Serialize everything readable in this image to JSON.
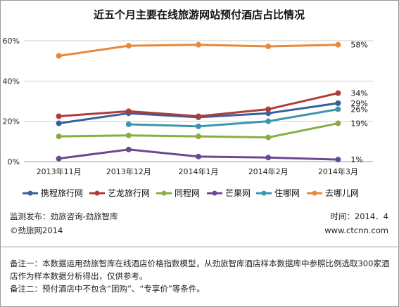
{
  "chart_data": {
    "type": "line",
    "title": "近五个月主要在线旅游网站预付酒店占比情况",
    "categories": [
      "2013年11月",
      "2013年12月",
      "2014年1月",
      "2014年2月",
      "2014年3月"
    ],
    "ylim": [
      0,
      60
    ],
    "yticks": [
      "0%",
      "20%",
      "40%",
      "60%"
    ],
    "grid": true,
    "legend_position": "bottom",
    "series": [
      {
        "name": "携程旅行网",
        "color": "#3a5f9c",
        "values": [
          19,
          24,
          22,
          24,
          29
        ],
        "end_label": "29%"
      },
      {
        "name": "艺龙旅行网",
        "color": "#b03b3b",
        "values": [
          22.5,
          25,
          22.5,
          26,
          34
        ],
        "end_label": "34%"
      },
      {
        "name": "同程网",
        "color": "#8aac45",
        "values": [
          12.5,
          13,
          12.5,
          12,
          19
        ],
        "end_label": "19%"
      },
      {
        "name": "芒果网",
        "color": "#6a4a8e",
        "values": [
          1.5,
          6,
          2.5,
          2,
          1
        ],
        "end_label": "1%"
      },
      {
        "name": "住哪网",
        "color": "#3b97ae",
        "values": [
          null,
          18.5,
          17.5,
          20,
          26
        ],
        "end_label": "26%"
      },
      {
        "name": "去哪儿网",
        "color": "#e8883a",
        "values": [
          52.5,
          57.5,
          58,
          57.2,
          58
        ],
        "end_label": "58%"
      }
    ]
  },
  "footer": {
    "monitor": "监测发布：劲旅咨询-劲旅智库",
    "time": "时间：2014．4",
    "copyright": "©劲旅网2014",
    "website": "www.ctcnn.com"
  },
  "notes": {
    "note1": "备注一：本数据运用劲旅智库在线酒店价格指数模型，从劲旅智库酒店样本数据库中参照比例选取300家酒店作为样本数据分析得出，仅供参考。",
    "note2": "备注二：预付酒店中不包含“团购”、“专享价”等条件。"
  }
}
